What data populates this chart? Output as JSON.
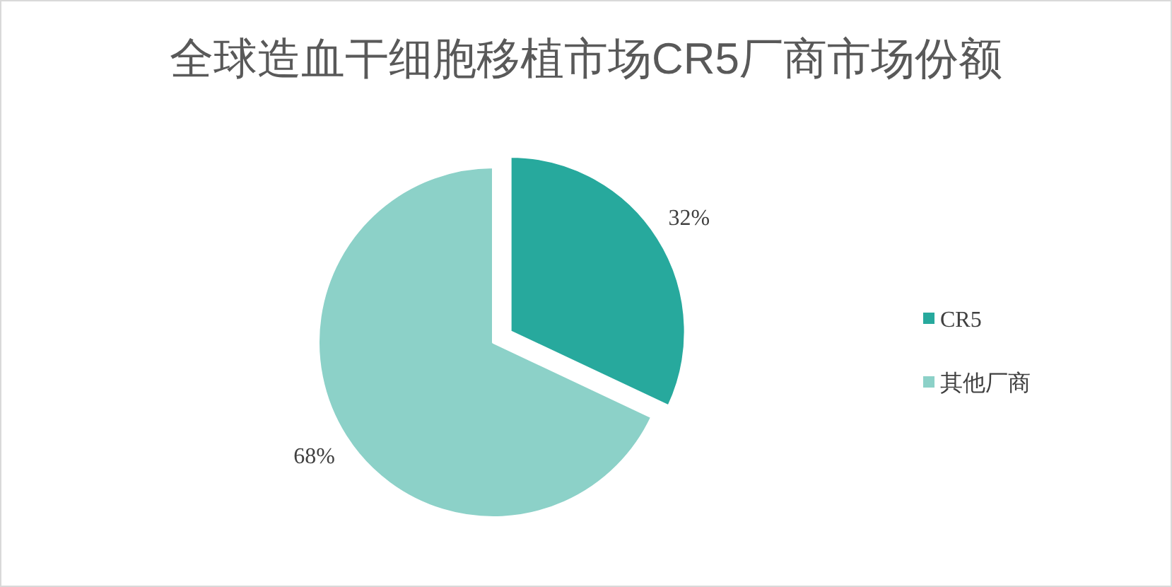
{
  "chart_data": {
    "type": "pie",
    "title": "全球造血干细胞移植市场CR5厂商市场份额",
    "categories": [
      "CR5",
      "其他厂商"
    ],
    "values": [
      32,
      68
    ],
    "colors": [
      "#27a99d",
      "#8cd1c8"
    ],
    "value_labels": [
      "32%",
      "68%"
    ],
    "legend": "right"
  }
}
